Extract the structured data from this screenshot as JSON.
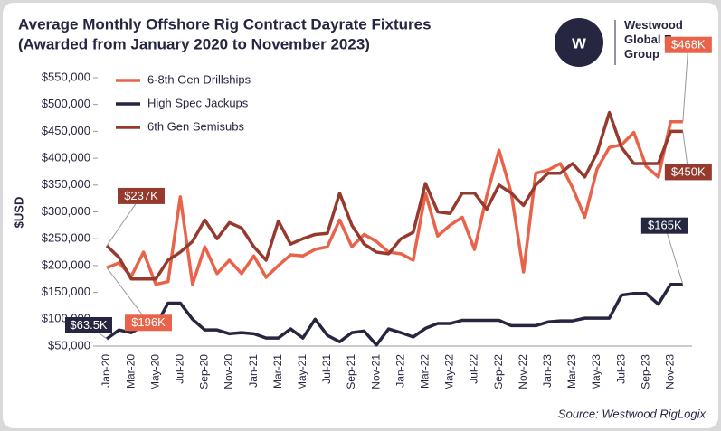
{
  "header": {
    "logo_text": "Westwood Global Energy Group"
  },
  "chart_data": {
    "type": "line",
    "title": "Average Monthly Offshore Rig Contract Dayrate Fixtures",
    "subtitle": "(Awarded from January 2020 to November 2023)",
    "y_label": "$USD",
    "source": "Source: Westwood RigLogix",
    "categories": [
      "Jan-20",
      null,
      "Mar-20",
      null,
      "May-20",
      null,
      "Jul-20",
      null,
      "Sep-20",
      null,
      "Nov-20",
      null,
      "Jan-21",
      null,
      "Mar-21",
      null,
      "May-21",
      null,
      "Jul-21",
      null,
      "Sep-21",
      null,
      "Nov-21",
      null,
      "Jan-22",
      null,
      "Mar-22",
      null,
      "May-22",
      null,
      "Jul-22",
      null,
      "Sep-22",
      null,
      "Nov-22",
      null,
      "Jan-23",
      null,
      "Mar-23",
      null,
      "May-23",
      null,
      "Jul-23",
      null,
      "Sep-23",
      null,
      "Nov-23",
      null
    ],
    "ylim": [
      50000,
      550000
    ],
    "yticks": [
      {
        "value": 50000,
        "label": "$50,000"
      },
      {
        "value": 100000,
        "label": "$100,000"
      },
      {
        "value": 150000,
        "label": "$150,000"
      },
      {
        "value": 200000,
        "label": "$200,000"
      },
      {
        "value": 250000,
        "label": "$250,000"
      },
      {
        "value": 300000,
        "label": "$300,000"
      },
      {
        "value": 350000,
        "label": "$350,000"
      },
      {
        "value": 400000,
        "label": "$400,000"
      },
      {
        "value": 450000,
        "label": "$450,000"
      },
      {
        "value": 500000,
        "label": "$500,000"
      },
      {
        "value": 550000,
        "label": "$550,000"
      }
    ],
    "grid": false,
    "legend": "upper-left",
    "series": [
      {
        "name": "6-8th Gen Drillships",
        "color": "#e8634a",
        "values": [
          196000,
          205000,
          180000,
          225000,
          165000,
          170000,
          328000,
          165000,
          235000,
          185000,
          210000,
          185000,
          218000,
          178000,
          200000,
          220000,
          218000,
          230000,
          235000,
          285000,
          235000,
          258000,
          245000,
          225000,
          222000,
          210000,
          335000,
          255000,
          275000,
          290000,
          230000,
          330000,
          415000,
          335000,
          188000,
          372000,
          378000,
          390000,
          345000,
          290000,
          380000,
          420000,
          425000,
          448000,
          385000,
          365000,
          468000,
          468000
        ],
        "value_labels": [
          "$196K",
          null,
          null,
          null,
          null,
          null,
          null,
          null,
          null,
          null,
          null,
          null,
          null,
          null,
          null,
          null,
          null,
          null,
          null,
          null,
          null,
          null,
          null,
          null,
          null,
          null,
          null,
          null,
          null,
          null,
          null,
          null,
          null,
          null,
          null,
          null,
          null,
          null,
          null,
          null,
          null,
          null,
          null,
          null,
          null,
          null,
          null,
          "$468K"
        ]
      },
      {
        "name": "High Spec Jackups",
        "color": "#262640",
        "values": [
          63500,
          80000,
          75000,
          88000,
          88000,
          130000,
          130000,
          100000,
          80000,
          80000,
          73000,
          75000,
          73000,
          65000,
          65000,
          82000,
          65000,
          100000,
          70000,
          58000,
          75000,
          78000,
          52000,
          82000,
          75000,
          67000,
          83000,
          92000,
          92000,
          98000,
          98000,
          98000,
          98000,
          88000,
          88000,
          88000,
          95000,
          97000,
          97000,
          102000,
          102000,
          102000,
          145000,
          148000,
          148000,
          128000,
          165000,
          165000
        ],
        "value_labels": [
          "$63.5K",
          null,
          null,
          null,
          null,
          null,
          null,
          null,
          null,
          null,
          null,
          null,
          null,
          null,
          null,
          null,
          null,
          null,
          null,
          null,
          null,
          null,
          null,
          null,
          null,
          null,
          null,
          null,
          null,
          null,
          null,
          null,
          null,
          null,
          null,
          null,
          null,
          null,
          null,
          null,
          null,
          null,
          null,
          null,
          null,
          null,
          null,
          "$165K"
        ]
      },
      {
        "name": "6th Gen Semisubs",
        "color": "#963a2e",
        "values": [
          237000,
          215000,
          175000,
          175000,
          175000,
          210000,
          225000,
          245000,
          285000,
          250000,
          280000,
          270000,
          235000,
          210000,
          283000,
          240000,
          250000,
          258000,
          260000,
          335000,
          275000,
          240000,
          225000,
          222000,
          250000,
          262000,
          353000,
          300000,
          297000,
          335000,
          335000,
          305000,
          350000,
          335000,
          312000,
          350000,
          372000,
          372000,
          390000,
          365000,
          410000,
          485000,
          420000,
          390000,
          390000,
          390000,
          450000,
          450000
        ],
        "value_labels": [
          "$237K",
          null,
          null,
          null,
          null,
          null,
          null,
          null,
          null,
          null,
          null,
          null,
          null,
          null,
          null,
          null,
          null,
          null,
          null,
          null,
          null,
          null,
          null,
          null,
          null,
          null,
          null,
          null,
          null,
          null,
          null,
          null,
          null,
          null,
          null,
          null,
          null,
          null,
          null,
          null,
          null,
          null,
          null,
          null,
          null,
          null,
          null,
          "$450K"
        ]
      }
    ]
  }
}
